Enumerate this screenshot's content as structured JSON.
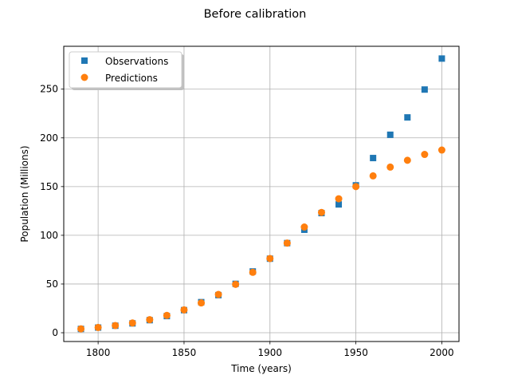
{
  "chart_data": {
    "type": "scatter",
    "title": "Before calibration",
    "xlabel": "Time (years)",
    "ylabel": "Population (Millions)",
    "xlim": [
      1780,
      2010
    ],
    "ylim": [
      -9,
      294
    ],
    "xticks": [
      1800,
      1850,
      1900,
      1950,
      2000
    ],
    "yticks": [
      0,
      50,
      100,
      150,
      200,
      250
    ],
    "grid": true,
    "legend_position": "top-left",
    "series": [
      {
        "name": "Observations",
        "marker": "square",
        "color": "#1f77b4",
        "x": [
          1790,
          1800,
          1810,
          1820,
          1830,
          1840,
          1850,
          1860,
          1870,
          1880,
          1890,
          1900,
          1910,
          1920,
          1930,
          1940,
          1950,
          1960,
          1970,
          1980,
          1990,
          2000
        ],
        "y": [
          3.9,
          5.3,
          7.2,
          9.6,
          12.9,
          17.1,
          23.2,
          31.4,
          38.6,
          50.2,
          62.9,
          76.0,
          92.0,
          105.7,
          122.8,
          131.7,
          151.3,
          179.3,
          203.2,
          221.0,
          249.6,
          281.4
        ]
      },
      {
        "name": "Predictions",
        "marker": "circle",
        "color": "#ff7f0e",
        "x": [
          1790,
          1800,
          1810,
          1820,
          1830,
          1840,
          1850,
          1860,
          1870,
          1880,
          1890,
          1900,
          1910,
          1920,
          1930,
          1940,
          1950,
          1960,
          1970,
          1980,
          1990,
          2000
        ],
        "y": [
          4.0,
          5.4,
          7.4,
          10.0,
          13.4,
          17.8,
          23.5,
          30.6,
          39.3,
          49.7,
          62.0,
          76.2,
          92.0,
          108.5,
          123.5,
          137.5,
          150.0,
          161.0,
          170.0,
          177.0,
          183.0,
          187.5
        ]
      }
    ]
  }
}
